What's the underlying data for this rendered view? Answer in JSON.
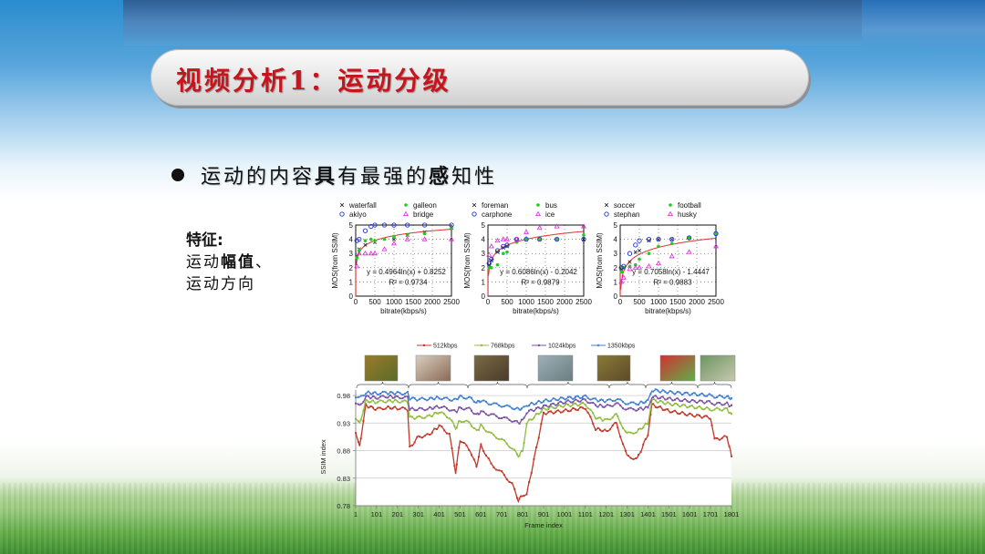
{
  "slide": {
    "title": "视频分析1：运动分级",
    "bullet": {
      "parts": [
        {
          "text": "运动的内容",
          "bold": false
        },
        {
          "text": "具",
          "bold": true
        },
        {
          "text": "有最强的",
          "bold": false
        },
        {
          "text": "感",
          "bold": true
        },
        {
          "text": "知性",
          "bold": false
        }
      ]
    },
    "features": {
      "heading": "特征:",
      "line1_prefix": "运动",
      "line1_bold": "幅值",
      "line1_suffix": "、",
      "line2": "运动方向"
    }
  },
  "chart_data": [
    {
      "type": "scatter",
      "title": "",
      "xlabel": "bitrate(kbps/s)",
      "ylabel": "MOS(from SSIM)",
      "xlim": [
        0,
        2500
      ],
      "ylim": [
        0,
        5
      ],
      "xticks": [
        "0",
        "500",
        "1000",
        "1500",
        "2000",
        "2500"
      ],
      "yticks": [
        "0",
        "1",
        "2",
        "3",
        "4",
        "5"
      ],
      "legend": [
        "waterfall",
        "galleon",
        "akiyo",
        "bridge"
      ],
      "series": [
        {
          "name": "waterfall",
          "marker": "x",
          "color": "#222222",
          "x": [
            30,
            90,
            250,
            500,
            1000,
            1350,
            1800,
            2500
          ],
          "y": [
            2.8,
            3.3,
            3.6,
            3.8,
            4.0,
            4.3,
            4.5,
            4.8
          ]
        },
        {
          "name": "galleon",
          "marker": "*",
          "color": "#22cc22",
          "x": [
            30,
            90,
            250,
            400,
            500,
            750,
            1000,
            1350,
            1800,
            2500
          ],
          "y": [
            2.7,
            3.2,
            3.9,
            4.0,
            3.9,
            4.0,
            4.2,
            4.3,
            4.4,
            4.8
          ]
        },
        {
          "name": "akiyo",
          "marker": "o",
          "color": "#2233cc",
          "x": [
            30,
            90,
            250,
            400,
            500,
            750,
            1000,
            1350,
            1800,
            2500
          ],
          "y": [
            3.9,
            4.0,
            4.6,
            4.9,
            5.0,
            5.0,
            5.0,
            5.0,
            5.0,
            5.0
          ]
        },
        {
          "name": "bridge",
          "marker": "^",
          "color": "#dd22dd",
          "x": [
            30,
            90,
            250,
            400,
            500,
            750,
            1000,
            1350,
            1800,
            2500
          ],
          "y": [
            2.1,
            3.0,
            3.0,
            3.0,
            3.0,
            3.3,
            3.7,
            4.0,
            4.0,
            4.0
          ]
        }
      ],
      "fit": {
        "equation": "y = 0.4964ln(x) + 0.8252",
        "r2": "R² = 0.9734",
        "a": 0.4964,
        "b": 0.8252,
        "color": "#e03030"
      }
    },
    {
      "type": "scatter",
      "title": "",
      "xlabel": "bitrate(kbps/s)",
      "ylabel": "MOS(from SSIM)",
      "xlim": [
        0,
        2500
      ],
      "ylim": [
        0,
        5
      ],
      "xticks": [
        "0",
        "500",
        "1000",
        "1500",
        "2000",
        "2500"
      ],
      "yticks": [
        "0",
        "1",
        "2",
        "3",
        "4",
        "5"
      ],
      "legend": [
        "foreman",
        "bus",
        "carphone",
        "ice"
      ],
      "series": [
        {
          "name": "foreman",
          "marker": "x",
          "color": "#222222",
          "x": [
            30,
            90,
            250,
            400,
            500,
            750,
            1000,
            1350,
            1800,
            2500
          ],
          "y": [
            2.2,
            2.5,
            3.1,
            3.4,
            3.5,
            3.9,
            4.0,
            4.0,
            4.0,
            4.0
          ]
        },
        {
          "name": "bus",
          "marker": "*",
          "color": "#22cc22",
          "x": [
            30,
            90,
            250,
            400,
            500,
            750,
            1000,
            1350,
            1800,
            2500
          ],
          "y": [
            2.0,
            2.0,
            2.2,
            3.0,
            3.1,
            3.8,
            4.0,
            4.0,
            4.0,
            4.3
          ]
        },
        {
          "name": "carphone",
          "marker": "o",
          "color": "#2233cc",
          "x": [
            30,
            90,
            250,
            400,
            500,
            750,
            1000,
            1350,
            1800,
            2500
          ],
          "y": [
            2.3,
            2.6,
            3.2,
            3.5,
            3.6,
            4.0,
            4.0,
            4.0,
            4.0,
            4.0
          ]
        },
        {
          "name": "ice",
          "marker": "^",
          "color": "#dd22dd",
          "x": [
            30,
            90,
            250,
            400,
            500,
            750,
            1000,
            1350,
            1800,
            2500
          ],
          "y": [
            2.9,
            3.5,
            3.9,
            4.0,
            4.0,
            4.0,
            4.5,
            4.8,
            4.9,
            4.9
          ]
        }
      ],
      "fit": {
        "equation": "y = 0.6086ln(x) - 0.2042",
        "r2": "R² = 0.9879",
        "a": 0.6086,
        "b": -0.2042,
        "color": "#e03030"
      }
    },
    {
      "type": "scatter",
      "title": "",
      "xlabel": "bitrate(kbps/s)",
      "ylabel": "MOS(from SSIM)",
      "xlim": [
        0,
        2500
      ],
      "ylim": [
        0,
        5
      ],
      "xticks": [
        "0",
        "500",
        "1000",
        "1500",
        "2000",
        "2500"
      ],
      "yticks": [
        "0",
        "1",
        "2",
        "3",
        "4",
        "5"
      ],
      "legend": [
        "soccer",
        "football",
        "stephan",
        "husky"
      ],
      "series": [
        {
          "name": "soccer",
          "marker": "x",
          "color": "#222222",
          "x": [
            30,
            90,
            250,
            400,
            500,
            750,
            1000,
            1350,
            1800,
            2500
          ],
          "y": [
            1.9,
            2.0,
            2.4,
            3.1,
            3.2,
            3.9,
            4.0,
            4.0,
            4.1,
            4.4
          ]
        },
        {
          "name": "football",
          "marker": "*",
          "color": "#22cc22",
          "x": [
            30,
            90,
            250,
            400,
            500,
            750,
            1000,
            1350,
            1800,
            2500
          ],
          "y": [
            1.7,
            2.0,
            2.1,
            2.2,
            2.6,
            3.0,
            3.5,
            3.7,
            4.1,
            4.4
          ]
        },
        {
          "name": "stephan",
          "marker": "o",
          "color": "#2233cc",
          "x": [
            30,
            90,
            250,
            400,
            500,
            750,
            1000,
            1350,
            1800,
            2500
          ],
          "y": [
            2.0,
            2.1,
            3.0,
            3.6,
            3.9,
            4.0,
            4.0,
            4.0,
            4.1,
            4.4
          ]
        },
        {
          "name": "husky",
          "marker": "^",
          "color": "#dd22dd",
          "x": [
            30,
            90,
            250,
            400,
            500,
            750,
            1000,
            1350,
            1800,
            2500
          ],
          "y": [
            1.0,
            1.3,
            1.9,
            2.0,
            2.0,
            2.1,
            2.3,
            2.8,
            3.1,
            3.5
          ]
        }
      ],
      "fit": {
        "equation": "y = 0.7058ln(x) - 1.4447",
        "r2": "R² = 0.9883",
        "a": 0.7058,
        "b": -1.4447,
        "color": "#e03030"
      }
    },
    {
      "type": "line",
      "title": "",
      "xlabel": "Frame index",
      "ylabel": "SSIM index",
      "xlim": [
        1,
        1801
      ],
      "ylim": [
        0.78,
        1.0
      ],
      "xticks": [
        "1",
        "101",
        "201",
        "301",
        "401",
        "501",
        "601",
        "701",
        "801",
        "901",
        "1001",
        "1101",
        "1201",
        "1301",
        "1401",
        "1501",
        "1601",
        "1701",
        "1801"
      ],
      "yticks": [
        "0.78",
        "0.83",
        "0.88",
        "0.93",
        "0.98"
      ],
      "grid": true,
      "legend_position": "top",
      "legend": [
        "512kbps",
        "768kbps",
        "1024kbps",
        "1350kbps"
      ],
      "x": [
        1,
        20,
        50,
        101,
        150,
        201,
        250,
        260,
        301,
        350,
        401,
        450,
        480,
        501,
        550,
        580,
        601,
        650,
        700,
        750,
        780,
        801,
        820,
        901,
        1001,
        1101,
        1150,
        1201,
        1250,
        1300,
        1350,
        1401,
        1420,
        1501,
        1601,
        1701,
        1720,
        1780,
        1801
      ],
      "series": [
        {
          "name": "512kbps",
          "color": "#c0392b",
          "values": [
            0.91,
            0.89,
            0.962,
            0.955,
            0.958,
            0.957,
            0.955,
            0.885,
            0.905,
            0.908,
            0.925,
            0.91,
            0.84,
            0.9,
            0.88,
            0.85,
            0.89,
            0.855,
            0.84,
            0.82,
            0.79,
            0.8,
            0.8,
            0.948,
            0.952,
            0.958,
            0.92,
            0.915,
            0.93,
            0.87,
            0.865,
            0.91,
            0.963,
            0.952,
            0.945,
            0.94,
            0.9,
            0.905,
            0.87
          ]
        },
        {
          "name": "768kbps",
          "color": "#8fbc3f",
          "values": [
            0.935,
            0.93,
            0.97,
            0.968,
            0.97,
            0.97,
            0.968,
            0.94,
            0.94,
            0.942,
            0.95,
            0.94,
            0.92,
            0.935,
            0.93,
            0.915,
            0.925,
            0.91,
            0.9,
            0.885,
            0.87,
            0.88,
            0.93,
            0.955,
            0.962,
            0.965,
            0.94,
            0.935,
            0.945,
            0.91,
            0.915,
            0.93,
            0.972,
            0.965,
            0.96,
            0.955,
            0.955,
            0.955,
            0.945
          ]
        },
        {
          "name": "1024kbps",
          "color": "#7b52a6",
          "values": [
            0.965,
            0.96,
            0.978,
            0.976,
            0.978,
            0.977,
            0.976,
            0.955,
            0.955,
            0.956,
            0.96,
            0.955,
            0.95,
            0.958,
            0.955,
            0.945,
            0.95,
            0.945,
            0.94,
            0.935,
            0.93,
            0.935,
            0.95,
            0.96,
            0.968,
            0.972,
            0.962,
            0.96,
            0.965,
            0.955,
            0.955,
            0.958,
            0.978,
            0.974,
            0.97,
            0.968,
            0.965,
            0.965,
            0.96
          ]
        },
        {
          "name": "1350kbps",
          "color": "#3f7fcf",
          "values": [
            0.978,
            0.975,
            0.985,
            0.984,
            0.985,
            0.984,
            0.984,
            0.975,
            0.973,
            0.974,
            0.976,
            0.973,
            0.972,
            0.978,
            0.975,
            0.968,
            0.97,
            0.965,
            0.962,
            0.958,
            0.955,
            0.956,
            0.962,
            0.97,
            0.975,
            0.978,
            0.972,
            0.97,
            0.973,
            0.966,
            0.965,
            0.97,
            0.99,
            0.986,
            0.983,
            0.98,
            0.978,
            0.978,
            0.974
          ]
        }
      ],
      "thumbnails": [
        "waterfall",
        "akiyo",
        "soccer",
        "galleon",
        "football",
        "stephan",
        "tennis"
      ]
    }
  ]
}
